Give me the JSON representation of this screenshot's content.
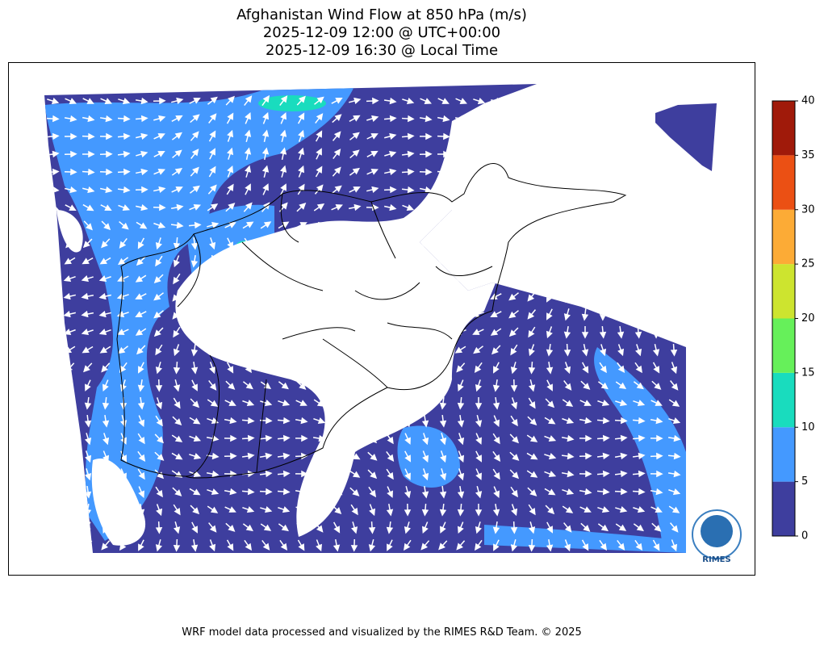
{
  "title": {
    "lines": [
      "Afghanistan Wind Flow at 850 hPa (m/s)",
      "2025-12-09 12:00 @ UTC+00:00",
      "2025-12-09 16:30 @ Local Time"
    ]
  },
  "colorbar": {
    "levels": [
      0,
      5,
      10,
      15,
      20,
      25,
      30,
      35,
      40
    ],
    "colors": [
      "#3e3e9e",
      "#4499ff",
      "#19dcbe",
      "#66f05a",
      "#cde42f",
      "#fcab36",
      "#eb5014",
      "#a01a0a"
    ]
  },
  "logo": {
    "label": "RIMES"
  },
  "footer": "WRF model data processed and visualized by the RIMES R&D Team. © 2025"
}
